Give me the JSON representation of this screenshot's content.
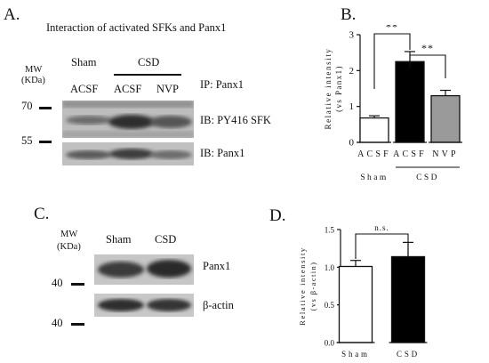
{
  "panel_a": {
    "letter": "A.",
    "title": "Interaction of activated SFKs and Panx1",
    "mw_label_1": "MW",
    "mw_label_2": "(KDa)",
    "mw_70": "70",
    "mw_55": "55",
    "group_sham": "Sham",
    "group_csd": "CSD",
    "lane_1": "ACSF",
    "lane_2": "ACSF",
    "lane_3": "NVP",
    "ip_label": "IP: Panx1",
    "ib_top": "IB: PY416 SFK",
    "ib_bottom": "IB: Panx1"
  },
  "panel_c": {
    "letter": "C.",
    "mw_label_1": "MW",
    "mw_label_2": "(KDa)",
    "lane_1": "Sham",
    "lane_2": "CSD",
    "band_top": "Panx1",
    "band_bottom": "β-actin",
    "mw_40_top": "40",
    "mw_40_bottom": "40"
  },
  "chart_data": [
    {
      "panel": "B.",
      "type": "bar",
      "categories": [
        "ACSF",
        "ACSF",
        "NVP"
      ],
      "group_labels": [
        "Sham",
        "CSD"
      ],
      "values": [
        0.68,
        2.25,
        1.3
      ],
      "errors": [
        0.06,
        0.28,
        0.15
      ],
      "bar_fills": [
        "#ffffff",
        "#000000",
        "#9a9a9a"
      ],
      "ylabel": "Relative intensity",
      "ylabel2": "(vs Panx1)",
      "ylim": [
        0,
        3
      ],
      "yticks": [
        "0",
        "1",
        "2",
        "3"
      ],
      "significance": [
        {
          "from": 0,
          "to": 1,
          "label": "**"
        },
        {
          "from": 1,
          "to": 2,
          "label": "**"
        }
      ]
    },
    {
      "panel": "D.",
      "type": "bar",
      "categories": [
        "Sham",
        "CSD"
      ],
      "values": [
        1.01,
        1.14
      ],
      "errors": [
        0.08,
        0.19
      ],
      "bar_fills": [
        "#ffffff",
        "#000000"
      ],
      "ylabel": "Relative intensity",
      "ylabel2": "(vs β-actin)",
      "ylim": [
        0,
        1.5
      ],
      "yticks": [
        "0.0",
        "0.5",
        "1.0",
        "1.5"
      ],
      "significance": [
        {
          "from": 0,
          "to": 1,
          "label": "n.s."
        }
      ]
    }
  ]
}
